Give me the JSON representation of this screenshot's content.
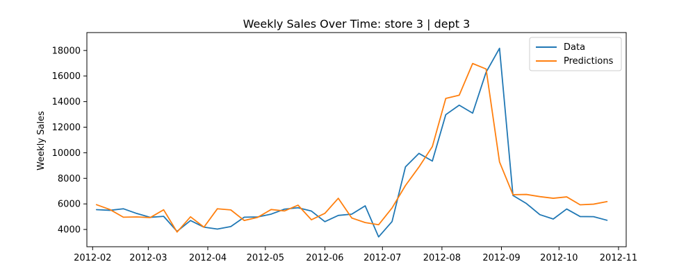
{
  "chart_data": {
    "type": "line",
    "title": "Weekly Sales Over Time: store 3 | dept 3",
    "xlabel": "",
    "ylabel": "Weekly Sales",
    "x_ticks": [
      "2012-02",
      "2012-03",
      "2012-04",
      "2012-05",
      "2012-06",
      "2012-07",
      "2012-08",
      "2012-09",
      "2012-10",
      "2012-11"
    ],
    "y_ticks": [
      4000,
      6000,
      8000,
      10000,
      12000,
      14000,
      16000,
      18000
    ],
    "y_tick_labels": [
      "4000",
      "6000",
      "8000",
      "10000",
      "12000",
      "14000",
      "16000",
      "18000"
    ],
    "ylim": [
      2650,
      19400
    ],
    "xlim": [
      "2012-01-29",
      "2012-11-05"
    ],
    "grid": false,
    "legend_position": "top-right",
    "x": [
      "2012-02-03",
      "2012-02-10",
      "2012-02-17",
      "2012-02-24",
      "2012-03-02",
      "2012-03-09",
      "2012-03-16",
      "2012-03-23",
      "2012-03-30",
      "2012-04-06",
      "2012-04-13",
      "2012-04-20",
      "2012-04-27",
      "2012-05-04",
      "2012-05-11",
      "2012-05-18",
      "2012-05-25",
      "2012-06-01",
      "2012-06-08",
      "2012-06-15",
      "2012-06-22",
      "2012-06-29",
      "2012-07-06",
      "2012-07-13",
      "2012-07-20",
      "2012-07-27",
      "2012-08-03",
      "2012-08-10",
      "2012-08-17",
      "2012-08-24",
      "2012-08-31",
      "2012-09-07",
      "2012-09-14",
      "2012-09-21",
      "2012-09-28",
      "2012-10-05",
      "2012-10-12",
      "2012-10-19",
      "2012-10-26"
    ],
    "series": [
      {
        "name": "Data",
        "color": "#1f77b4",
        "values": [
          5550,
          5500,
          5620,
          5250,
          4950,
          5030,
          3850,
          4700,
          4180,
          4030,
          4230,
          4960,
          4980,
          5200,
          5590,
          5700,
          5440,
          4610,
          5100,
          5200,
          5850,
          3420,
          4620,
          8900,
          9950,
          9350,
          12980,
          13720,
          13100,
          16300,
          18170,
          6660,
          6030,
          5160,
          4820,
          5600,
          5010,
          5000,
          4720
        ]
      },
      {
        "name": "Predictions",
        "color": "#ff7f0e",
        "values": [
          5940,
          5560,
          4960,
          4980,
          4930,
          5540,
          3800,
          4990,
          4180,
          5620,
          5530,
          4700,
          4950,
          5560,
          5450,
          5900,
          4760,
          5260,
          6440,
          4900,
          4540,
          4370,
          5680,
          7440,
          8880,
          10480,
          14250,
          14500,
          16980,
          16550,
          9280,
          6720,
          6740,
          6570,
          6440,
          6550,
          5930,
          5980,
          6180
        ]
      }
    ]
  }
}
